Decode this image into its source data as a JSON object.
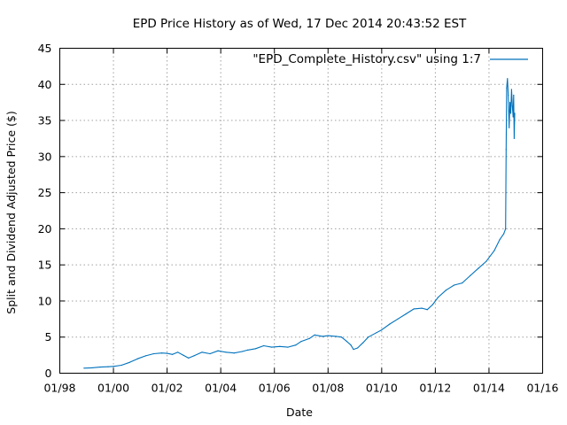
{
  "chart_data": {
    "type": "line",
    "title": "EPD Price History as of Wed, 17 Dec 2014 20:43:52 EST",
    "xlabel": "Date",
    "ylabel": "Split and Dividend Adjusted Price ($)",
    "xlim": [
      1998.0,
      2016.0
    ],
    "ylim": [
      0,
      45
    ],
    "grid": true,
    "legend_position": "top-right",
    "x_ticks": [
      {
        "value": 1998,
        "label": "01/98"
      },
      {
        "value": 2000,
        "label": "01/00"
      },
      {
        "value": 2002,
        "label": "01/02"
      },
      {
        "value": 2004,
        "label": "01/04"
      },
      {
        "value": 2006,
        "label": "01/06"
      },
      {
        "value": 2008,
        "label": "01/08"
      },
      {
        "value": 2010,
        "label": "01/10"
      },
      {
        "value": 2012,
        "label": "01/12"
      },
      {
        "value": 2014,
        "label": "01/14"
      },
      {
        "value": 2016,
        "label": "01/16"
      }
    ],
    "y_ticks": [
      0,
      5,
      10,
      15,
      20,
      25,
      30,
      35,
      40,
      45
    ],
    "series": [
      {
        "name": "\"EPD_Complete_History.csv\" using 1:7",
        "color": "#0072bd",
        "x": [
          1998.9,
          1999.2,
          1999.5,
          1999.8,
          2000.0,
          2000.3,
          2000.6,
          2000.9,
          2001.2,
          2001.5,
          2001.8,
          2002.0,
          2002.2,
          2002.4,
          2002.6,
          2002.8,
          2003.0,
          2003.3,
          2003.6,
          2003.9,
          2004.2,
          2004.5,
          2004.8,
          2005.0,
          2005.3,
          2005.6,
          2005.9,
          2006.2,
          2006.5,
          2006.8,
          2007.0,
          2007.3,
          2007.5,
          2007.8,
          2008.0,
          2008.3,
          2008.5,
          2008.7,
          2008.85,
          2008.95,
          2009.1,
          2009.3,
          2009.5,
          2009.8,
          2010.0,
          2010.3,
          2010.6,
          2010.9,
          2011.2,
          2011.5,
          2011.7,
          2011.9,
          2012.1,
          2012.4,
          2012.7,
          2013.0,
          2013.3,
          2013.6,
          2013.9,
          2014.2,
          2014.4,
          2014.55,
          2014.62,
          2014.64,
          2014.66,
          2014.69,
          2014.72,
          2014.75,
          2014.78,
          2014.81,
          2014.84,
          2014.87,
          2014.9,
          2014.92,
          2014.94,
          2014.96
        ],
        "y": [
          0.7,
          0.75,
          0.85,
          0.9,
          0.95,
          1.1,
          1.5,
          2.0,
          2.4,
          2.7,
          2.8,
          2.75,
          2.6,
          2.9,
          2.5,
          2.1,
          2.4,
          2.9,
          2.7,
          3.1,
          2.9,
          2.8,
          3.0,
          3.2,
          3.4,
          3.8,
          3.6,
          3.7,
          3.6,
          3.9,
          4.4,
          4.8,
          5.3,
          5.1,
          5.2,
          5.1,
          5.0,
          4.4,
          3.9,
          3.3,
          3.5,
          4.2,
          5.0,
          5.6,
          6.0,
          6.8,
          7.5,
          8.2,
          8.9,
          9.0,
          8.8,
          9.5,
          10.5,
          11.5,
          12.2,
          12.5,
          13.5,
          14.5,
          15.5,
          17.0,
          18.5,
          19.3,
          20.0,
          31.0,
          39.5,
          40.8,
          38.5,
          34.0,
          37.5,
          36.0,
          39.3,
          37.0,
          35.5,
          38.5,
          32.5,
          36.0
        ]
      }
    ]
  }
}
